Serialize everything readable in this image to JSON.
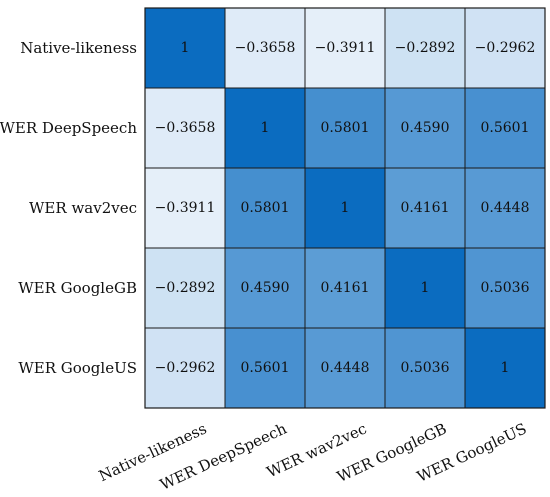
{
  "chart_data": {
    "type": "heatmap",
    "title": "",
    "xlabel": "",
    "ylabel": "",
    "row_labels": [
      "Native-likeness",
      "WER DeepSpeech",
      "WER wav2vec",
      "WER GoogleGB",
      "WER GoogleUS"
    ],
    "col_labels": [
      "Native-likeness",
      "WER DeepSpeech",
      "WER wav2vec",
      "WER GoogleGB",
      "WER GoogleUS"
    ],
    "values": [
      [
        1,
        -0.3658,
        -0.3911,
        -0.2892,
        -0.2962
      ],
      [
        -0.3658,
        1,
        0.5801,
        0.459,
        0.5601
      ],
      [
        -0.3911,
        0.5801,
        1,
        0.4161,
        0.4448
      ],
      [
        -0.2892,
        0.459,
        0.4161,
        1,
        0.5036
      ],
      [
        -0.2962,
        0.5601,
        0.4448,
        0.5036,
        1
      ]
    ],
    "display_values": [
      [
        "1",
        "−0.3658",
        "−0.3911",
        "−0.2892",
        "−0.2962"
      ],
      [
        "−0.3658",
        "1",
        "0.5801",
        "0.4590",
        "0.5601"
      ],
      [
        "−0.3911",
        "0.5801",
        "1",
        "0.4161",
        "0.4448"
      ],
      [
        "−0.2892",
        "0.4590",
        "0.4161",
        "1",
        "0.5036"
      ],
      [
        "−0.2962",
        "0.5601",
        "0.4448",
        "0.5036",
        "1"
      ]
    ],
    "value_range": [
      -0.4,
      1
    ],
    "colors": {
      "low": "#e8f1fa",
      "high": "#0b6cc0",
      "border": "#1a1a1a"
    },
    "grid": true,
    "legend": "none"
  }
}
